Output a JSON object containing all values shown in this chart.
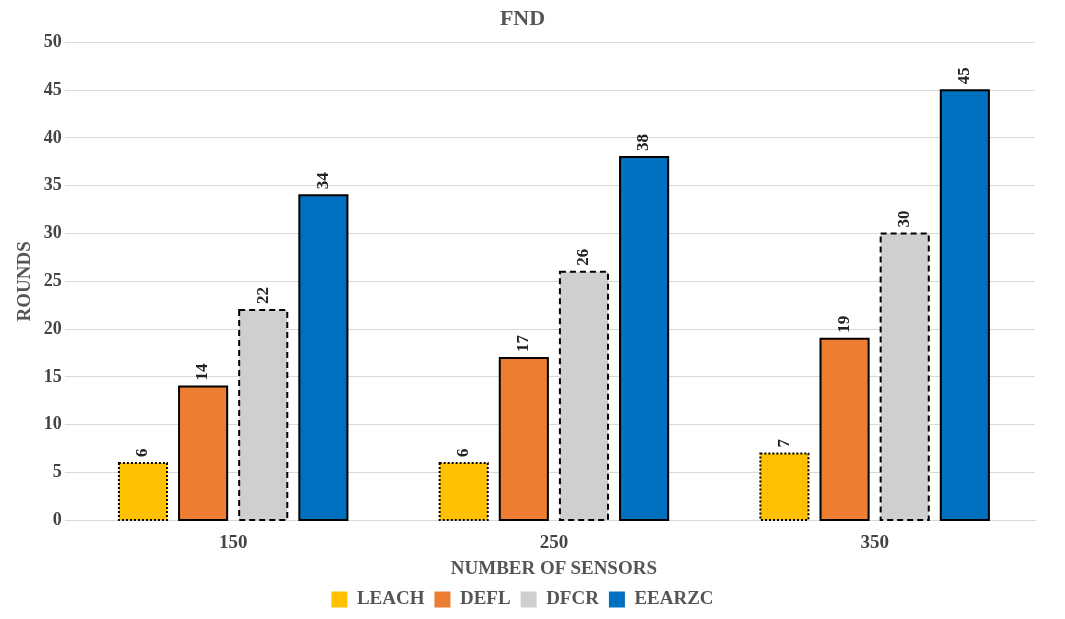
{
  "chart_data": {
    "type": "bar",
    "title": "FND",
    "xlabel": "NUMBER OF SENSORS",
    "ylabel": "ROUNDS",
    "categories": [
      "150",
      "250",
      "350"
    ],
    "series": [
      {
        "name": "LEACH",
        "color": "#ffc000",
        "values": [
          6,
          6,
          7
        ],
        "line_style": "dotted"
      },
      {
        "name": "DEFL",
        "color": "#ed7d31",
        "values": [
          14,
          17,
          19
        ],
        "line_style": "solid"
      },
      {
        "name": "DFCR",
        "color": "#d0cece",
        "values": [
          22,
          26,
          30
        ],
        "line_style": "dashed"
      },
      {
        "name": "EEARZC",
        "color": "#0070c0",
        "values": [
          34,
          38,
          45
        ],
        "line_style": "solid"
      }
    ],
    "ylim": [
      0,
      50
    ],
    "yticks": [
      0,
      5,
      10,
      15,
      20,
      25,
      30,
      35,
      40,
      45,
      50
    ],
    "grid": "y",
    "legend": "bottom",
    "data_labels": true
  }
}
